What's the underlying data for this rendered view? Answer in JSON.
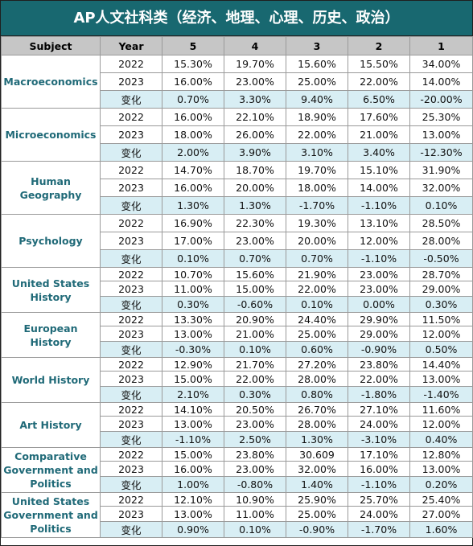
{
  "title": "AP人文社科类（经济、地理、心理、历史、政治）",
  "headers": [
    "Subject",
    "Year",
    "5",
    "4",
    "3",
    "2",
    "1"
  ],
  "subjects": [
    {
      "name": "Macroeconomics",
      "rows": [
        {
          "year": "2022",
          "vals": [
            "15.30%",
            "19.70%",
            "15.60%",
            "15.50%",
            "34.00%"
          ]
        },
        {
          "year": "2023",
          "vals": [
            "16.00%",
            "23.00%",
            "25.00%",
            "22.00%",
            "14.00%"
          ]
        },
        {
          "year": "变化",
          "vals": [
            "0.70%",
            "3.30%",
            "9.40%",
            "6.50%",
            "-20.00%"
          ]
        }
      ]
    },
    {
      "name": "Microeconomics",
      "rows": [
        {
          "year": "2022",
          "vals": [
            "16.00%",
            "22.10%",
            "18.90%",
            "17.60%",
            "25.30%"
          ]
        },
        {
          "year": "2023",
          "vals": [
            "18.00%",
            "26.00%",
            "22.00%",
            "21.00%",
            "13.00%"
          ]
        },
        {
          "year": "变化",
          "vals": [
            "2.00%",
            "3.90%",
            "3.10%",
            "3.40%",
            "-12.30%"
          ]
        }
      ]
    },
    {
      "name": "Human Geography",
      "rows": [
        {
          "year": "2022",
          "vals": [
            "14.70%",
            "18.70%",
            "19.70%",
            "15.10%",
            "31.90%"
          ]
        },
        {
          "year": "2023",
          "vals": [
            "16.00%",
            "20.00%",
            "18.00%",
            "14.00%",
            "32.00%"
          ]
        },
        {
          "year": "变化",
          "vals": [
            "1.30%",
            "1.30%",
            "-1.70%",
            "-1.10%",
            "0.10%"
          ]
        }
      ]
    },
    {
      "name": "Psychology",
      "rows": [
        {
          "year": "2022",
          "vals": [
            "16.90%",
            "22.30%",
            "19.30%",
            "13.10%",
            "28.50%"
          ]
        },
        {
          "year": "2023",
          "vals": [
            "17.00%",
            "23.00%",
            "20.00%",
            "12.00%",
            "28.00%"
          ]
        },
        {
          "year": "变化",
          "vals": [
            "0.10%",
            "0.70%",
            "0.70%",
            "-1.10%",
            "-0.50%"
          ]
        }
      ]
    },
    {
      "name": "United States History",
      "rows": [
        {
          "year": "2022",
          "vals": [
            "10.70%",
            "15.60%",
            "21.90%",
            "23.00%",
            "28.70%"
          ]
        },
        {
          "year": "2023",
          "vals": [
            "11.00%",
            "15.00%",
            "22.00%",
            "23.00%",
            "29.00%"
          ]
        },
        {
          "year": "变化",
          "vals": [
            "0.30%",
            "-0.60%",
            "0.10%",
            "0.00%",
            "0.30%"
          ]
        }
      ]
    },
    {
      "name": "European History",
      "rows": [
        {
          "year": "2022",
          "vals": [
            "13.30%",
            "20.90%",
            "24.40%",
            "29.90%",
            "11.50%"
          ]
        },
        {
          "year": "2023",
          "vals": [
            "13.00%",
            "21.00%",
            "25.00%",
            "29.00%",
            "12.00%"
          ]
        },
        {
          "year": "变化",
          "vals": [
            "-0.30%",
            "0.10%",
            "0.60%",
            "-0.90%",
            "0.50%"
          ]
        }
      ]
    },
    {
      "name": "World History",
      "rows": [
        {
          "year": "2022",
          "vals": [
            "12.90%",
            "21.70%",
            "27.20%",
            "23.80%",
            "14.40%"
          ]
        },
        {
          "year": "2023",
          "vals": [
            "15.00%",
            "22.00%",
            "28.00%",
            "22.00%",
            "13.00%"
          ]
        },
        {
          "year": "变化",
          "vals": [
            "2.10%",
            "0.30%",
            "0.80%",
            "-1.80%",
            "-1.40%"
          ]
        }
      ]
    },
    {
      "name": "Art History",
      "rows": [
        {
          "year": "2022",
          "vals": [
            "14.10%",
            "20.50%",
            "26.70%",
            "27.10%",
            "11.60%"
          ]
        },
        {
          "year": "2023",
          "vals": [
            "13.00%",
            "23.00%",
            "28.00%",
            "24.00%",
            "12.00%"
          ]
        },
        {
          "year": "变化",
          "vals": [
            "-1.10%",
            "2.50%",
            "1.30%",
            "-3.10%",
            "0.40%"
          ]
        }
      ]
    },
    {
      "name": "Comparative Government and Politics",
      "rows": [
        {
          "year": "2022",
          "vals": [
            "15.00%",
            "23.80%",
            "30.609",
            "17.10%",
            "12.80%"
          ]
        },
        {
          "year": "2023",
          "vals": [
            "16.00%",
            "23.00%",
            "32.00%",
            "16.00%",
            "13.00%"
          ]
        },
        {
          "year": "变化",
          "vals": [
            "1.00%",
            "-0.80%",
            "1.40%",
            "-1.10%",
            "0.20%"
          ]
        }
      ]
    },
    {
      "name": "United States Government and Politics",
      "rows": [
        {
          "year": "2022",
          "vals": [
            "12.10%",
            "10.90%",
            "25.90%",
            "25.70%",
            "25.40%"
          ]
        },
        {
          "year": "2023",
          "vals": [
            "13.00%",
            "11.00%",
            "25.00%",
            "24.00%",
            "27.00%"
          ]
        },
        {
          "year": "变化",
          "vals": [
            "0.90%",
            "0.10%",
            "-0.90%",
            "-1.70%",
            "1.60%"
          ]
        }
      ]
    }
  ]
}
